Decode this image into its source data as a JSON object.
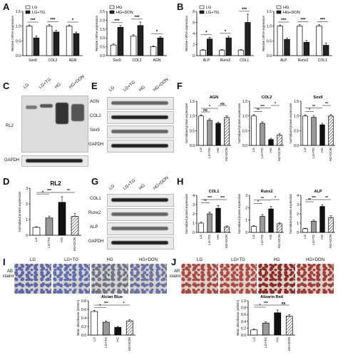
{
  "panel_letters": {
    "A": "A",
    "B": "B",
    "C": "C",
    "D": "D",
    "E": "E",
    "F": "F",
    "G": "G",
    "H": "H",
    "I": "I",
    "J": "J"
  },
  "blots": {
    "C": {
      "lanes": [
        "LG",
        "LG+TG",
        "HG",
        "HG+DON"
      ],
      "rows": [
        "RL2",
        "GAPDH"
      ]
    },
    "E": {
      "lanes": [
        "LG",
        "LG+TG",
        "HG",
        "HG+DON"
      ],
      "rows": [
        "AGN",
        "COL2",
        "Sox9",
        "GAPDH"
      ]
    },
    "G": {
      "lanes": [
        "LG",
        "LG+TG",
        "HG",
        "HG+DON"
      ],
      "rows": [
        "COL1",
        "Runx2",
        "ALP",
        "GAPDH"
      ]
    }
  },
  "micro": {
    "I": {
      "lanes": [
        "LG",
        "LG+TG",
        "HG",
        "HG+DON"
      ],
      "row_label": [
        "AB",
        "staining"
      ],
      "colors": [
        "#5a67a8",
        "#5e6fb0",
        "#6a7488",
        "#6873a6"
      ]
    },
    "J": {
      "lanes": [
        "LG",
        "LG+TG",
        "HG",
        "HG+DON"
      ],
      "row_label": [
        "AR",
        "staining"
      ],
      "colors": [
        "#a8483e",
        "#b04a40",
        "#8c2a22",
        "#a23c34"
      ]
    }
  },
  "chart_data": [
    {
      "id": "A1",
      "type": "bar",
      "categories": [
        "Sox9",
        "COL2",
        "AGN"
      ],
      "ylabel": "Relative mRNA expression",
      "ylim": [
        0,
        1.5
      ],
      "yticks": [
        0.0,
        0.5,
        1.0,
        1.5
      ],
      "series": [
        {
          "name": "LG",
          "values": [
            1.0,
            1.0,
            1.0
          ],
          "err": [
            0.04,
            0.05,
            0.04
          ],
          "color": "#ffffff"
        },
        {
          "name": "LG+TG",
          "values": [
            0.6,
            0.8,
            0.75
          ],
          "err": [
            0.07,
            0.06,
            0.05
          ],
          "color": "#222222"
        }
      ],
      "sig": [
        "***",
        "***",
        "*"
      ]
    },
    {
      "id": "A2",
      "type": "bar",
      "categories": [
        "Sox9",
        "COL2",
        "AGN"
      ],
      "ylabel": "Relative mRNA expression",
      "ylim": [
        0,
        2.5
      ],
      "yticks": [
        0.0,
        0.5,
        1.0,
        1.5,
        2.0,
        2.5
      ],
      "series": [
        {
          "name": "HG",
          "values": [
            0.6,
            1.1,
            0.5
          ],
          "err": [
            0.06,
            0.08,
            0.05
          ],
          "color": "#ffffff"
        },
        {
          "name": "HG+DON",
          "values": [
            1.6,
            1.7,
            1.0
          ],
          "err": [
            0.1,
            0.2,
            0.08
          ],
          "color": "#222222"
        }
      ],
      "sig": [
        "***",
        "***",
        "*"
      ]
    },
    {
      "id": "B1",
      "type": "bar",
      "categories": [
        "ALP",
        "Runx2",
        "COL1"
      ],
      "ylabel": "Relative mRNA expression",
      "ylim": [
        0,
        8
      ],
      "yticks": [
        0,
        2,
        4,
        6,
        8
      ],
      "series": [
        {
          "name": "LG",
          "values": [
            1.0,
            1.0,
            1.0
          ],
          "err": [
            0.1,
            0.1,
            0.1
          ],
          "color": "#ffffff"
        },
        {
          "name": "LG+TG",
          "values": [
            3.0,
            3.2,
            6.0
          ],
          "err": [
            0.3,
            0.3,
            1.5
          ],
          "color": "#222222"
        }
      ],
      "sig": [
        "*",
        "*",
        "***"
      ]
    },
    {
      "id": "B2",
      "type": "bar",
      "categories": [
        "ALP",
        "Runx2",
        "COL1"
      ],
      "ylabel": "Relative mRNA expression",
      "ylim": [
        0,
        1.5
      ],
      "yticks": [
        0.0,
        0.5,
        1.0,
        1.5
      ],
      "series": [
        {
          "name": "HG",
          "values": [
            1.0,
            1.0,
            1.0
          ],
          "err": [
            0.04,
            0.05,
            0.05
          ],
          "color": "#ffffff"
        },
        {
          "name": "HG+DON",
          "values": [
            0.55,
            0.45,
            0.35
          ],
          "err": [
            0.05,
            0.06,
            0.08
          ],
          "color": "#222222"
        }
      ],
      "sig": [
        "***",
        "***",
        "***"
      ]
    },
    {
      "id": "D",
      "type": "bar",
      "title": "RL2",
      "categories": [
        "LG",
        "LG+TG",
        "HG",
        "HG+DON"
      ],
      "ylabel": "Normalized protein expression",
      "ylim": [
        0,
        3
      ],
      "yticks": [
        0,
        1,
        2,
        3
      ],
      "values": [
        0.5,
        1.1,
        2.1,
        1.2
      ],
      "err": [
        0.05,
        0.12,
        0.35,
        0.2
      ],
      "sig_pairs": [
        [
          "LG",
          "LG+TG",
          "*"
        ],
        [
          "LG",
          "HG",
          "***"
        ],
        [
          "HG",
          "HG+DON",
          "**"
        ]
      ]
    },
    {
      "id": "F1",
      "type": "bar",
      "title": "AGN",
      "categories": [
        "LG",
        "LG+TG",
        "HG",
        "HG+DON"
      ],
      "ylabel": "Normalized protein expression",
      "ylim": [
        0,
        1.5
      ],
      "yticks": [
        0.0,
        0.5,
        1.0,
        1.5
      ],
      "values": [
        1.0,
        0.85,
        0.75,
        0.95
      ],
      "err": [
        0.04,
        0.05,
        0.04,
        0.05
      ],
      "sig_pairs": [
        [
          "LG",
          "LG+TG",
          "ns"
        ],
        [
          "LG",
          "HG",
          "*"
        ],
        [
          "HG",
          "HG+DON",
          "ns"
        ]
      ]
    },
    {
      "id": "F2",
      "type": "bar",
      "title": "COL2",
      "categories": [
        "LG",
        "LG+TG",
        "HG",
        "HG+DON"
      ],
      "ylabel": "Normalized protein expression",
      "ylim": [
        0,
        1.5
      ],
      "yticks": [
        0.0,
        0.5,
        1.0,
        1.5
      ],
      "values": [
        1.0,
        0.75,
        0.2,
        0.35
      ],
      "err": [
        0.05,
        0.05,
        0.04,
        0.05
      ],
      "sig_pairs": [
        [
          "LG",
          "LG+TG",
          "**"
        ],
        [
          "LG",
          "HG",
          "***"
        ],
        [
          "HG",
          "HG+DON",
          "*"
        ]
      ]
    },
    {
      "id": "F3",
      "type": "bar",
      "title": "Sox9",
      "categories": [
        "LG",
        "LG+TG",
        "HG",
        "HG+DON"
      ],
      "ylabel": "Normalized protein expression",
      "ylim": [
        0,
        1.5
      ],
      "yticks": [
        0.0,
        0.5,
        1.0,
        1.5
      ],
      "values": [
        1.0,
        0.95,
        0.7,
        1.0
      ],
      "err": [
        0.04,
        0.05,
        0.05,
        0.05
      ],
      "sig_pairs": [
        [
          "LG",
          "LG+TG",
          "*"
        ],
        [
          "LG",
          "HG",
          "**"
        ],
        [
          "HG",
          "HG+DON",
          "**"
        ]
      ]
    },
    {
      "id": "H1",
      "type": "bar",
      "title": "COL1",
      "categories": [
        "LG",
        "LG+TG",
        "HG",
        "HG+DON"
      ],
      "ylabel": "Normalized protein expression",
      "ylim": [
        0,
        4
      ],
      "yticks": [
        0,
        1,
        2,
        3,
        4
      ],
      "values": [
        1.0,
        2.0,
        2.6,
        0.6
      ],
      "err": [
        0.1,
        0.2,
        0.3,
        0.1
      ],
      "sig_pairs": [
        [
          "LG",
          "LG+TG",
          "**"
        ],
        [
          "LG",
          "HG",
          "***"
        ],
        [
          "HG",
          "HG+DON",
          "***"
        ]
      ]
    },
    {
      "id": "H2",
      "type": "bar",
      "title": "Runx2",
      "categories": [
        "LG",
        "LG+TG",
        "HG",
        "HG+DON"
      ],
      "ylabel": "Normalized protein expression",
      "ylim": [
        0,
        3
      ],
      "yticks": [
        0,
        1,
        2,
        3
      ],
      "values": [
        0.5,
        1.3,
        1.9,
        0.7
      ],
      "err": [
        0.05,
        0.15,
        0.2,
        0.1
      ],
      "sig_pairs": [
        [
          "LG",
          "LG+TG",
          "*"
        ],
        [
          "LG",
          "HG",
          "**"
        ],
        [
          "HG",
          "HG+DON",
          "*"
        ]
      ]
    },
    {
      "id": "H3",
      "type": "bar",
      "title": "ALP",
      "categories": [
        "LG",
        "LG+TG",
        "HG",
        "HG+DON"
      ],
      "ylabel": "Normalized protein expression",
      "ylim": [
        0,
        4
      ],
      "yticks": [
        0,
        1,
        2,
        3,
        4
      ],
      "values": [
        0.4,
        1.2,
        2.8,
        1.6
      ],
      "err": [
        0.05,
        0.15,
        0.2,
        0.2
      ],
      "sig_pairs": [
        [
          "LG",
          "LG+TG",
          "**"
        ],
        [
          "LG",
          "HG",
          "***"
        ],
        [
          "HG",
          "HG+DON",
          "**"
        ]
      ]
    },
    {
      "id": "I",
      "type": "bar",
      "title": "Alcian Blue",
      "categories": [
        "LG",
        "LG+TG",
        "HG",
        "HG+DON"
      ],
      "ylabel": "Mean absorbance (620nm)",
      "ylim": [
        0,
        0.8
      ],
      "yticks": [
        0.0,
        0.2,
        0.4,
        0.6,
        0.8
      ],
      "values": [
        0.55,
        0.3,
        0.18,
        0.33
      ],
      "err": [
        0.03,
        0.03,
        0.02,
        0.03
      ],
      "sig_pairs": [
        [
          "LG",
          "LG+TG",
          "*"
        ],
        [
          "LG",
          "HG",
          "***"
        ],
        [
          "HG",
          "HG+DON",
          "*"
        ]
      ]
    },
    {
      "id": "J",
      "type": "bar",
      "title": "Alizarin Red",
      "categories": [
        "LG",
        "LG+TG",
        "HG",
        "HG+DON"
      ],
      "ylabel": "Mean absorbance (405nm)",
      "ylim": [
        0,
        1.0
      ],
      "yticks": [
        0.0,
        0.2,
        0.4,
        0.6,
        0.8,
        1.0
      ],
      "values": [
        0.15,
        0.35,
        0.65,
        0.55
      ],
      "err": [
        0.03,
        0.04,
        0.08,
        0.05
      ],
      "sig_pairs": [
        [
          "LG",
          "LG+TG",
          "*"
        ],
        [
          "LG",
          "HG",
          "***"
        ],
        [
          "HG",
          "HG+DON",
          "ns"
        ]
      ]
    }
  ]
}
